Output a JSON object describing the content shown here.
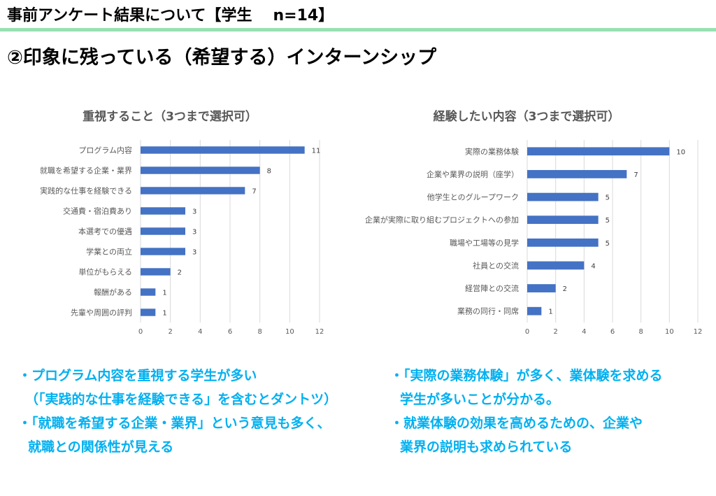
{
  "header": {
    "title_main": "事前アンケート結果について【学生",
    "title_n": "n=14】"
  },
  "page_title": "②印象に残っている（希望する）インターンシップ",
  "chart_data": [
    {
      "type": "bar",
      "orientation": "horizontal",
      "title": "重視すること（3つまで選択可）",
      "categories": [
        "プログラム内容",
        "就職を希望する企業・業界",
        "実践的な仕事を経験できる",
        "交通費・宿泊費あり",
        "本選考での優遇",
        "学業との両立",
        "単位がもらえる",
        "報酬がある",
        "先輩や周囲の評判"
      ],
      "values": [
        11,
        8,
        7,
        3,
        3,
        3,
        2,
        1,
        1
      ],
      "xlim": [
        0,
        12
      ],
      "xticks": [
        0,
        2,
        4,
        6,
        8,
        10,
        12
      ],
      "grid": true,
      "color": "#4472c4"
    },
    {
      "type": "bar",
      "orientation": "horizontal",
      "title": "経験したい内容（3つまで選択可）",
      "categories": [
        "実際の業務体験",
        "企業や業界の説明（座学）",
        "他学生とのグループワーク",
        "企業が実際に取り組むプロジェクトへの参加",
        "職場や工場等の見学",
        "社員との交流",
        "経営陣との交流",
        "業務の同行・同席"
      ],
      "values": [
        10,
        7,
        5,
        5,
        5,
        4,
        2,
        1
      ],
      "xlim": [
        0,
        12
      ],
      "xticks": [
        0,
        2,
        4,
        6,
        8,
        10,
        12
      ],
      "grid": true,
      "color": "#4472c4"
    }
  ],
  "summary_left": [
    "・プログラム内容を重視する学生が多い",
    "（「実践的な仕事を経験できる」を含むとダントツ）",
    "・「就職を希望する企業・業界」という意見も多く、",
    "就職との関係性が見える"
  ],
  "summary_right": [
    "・「実際の業務体験」が多く、業体験を求める",
    "学生が多いことが分かる。",
    "・就業体験の効果を高めるための、企業や",
    "業界の説明も求められている"
  ],
  "colors": {
    "accent_line": "#98e0b2",
    "bar": "#4472c4",
    "summary_text": "#00b0f0"
  }
}
